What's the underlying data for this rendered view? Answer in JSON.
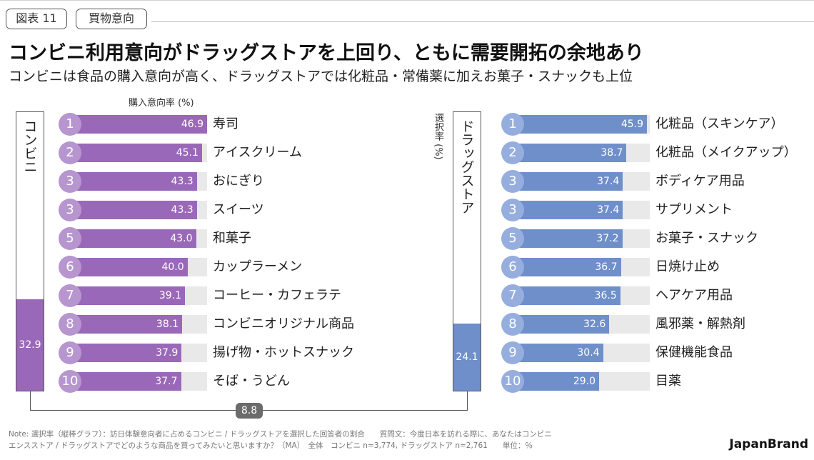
{
  "header": {
    "tag1": "図表 11",
    "tag2": "買物意向",
    "title": "コンビニ利用意向がドラッグストアを上回り、ともに需要開拓の余地あり",
    "subtitle": "コンビニは食品の購入意向が高く、ドラッグストアでは化粧品・常備薬に加えお菓子・スナックも上位"
  },
  "labels": {
    "left_axis": "購入意向率 (%)",
    "right_axis": "選択率 (%)"
  },
  "colors": {
    "conbini": "#9a68b8",
    "conbini_circle": "#b796cf",
    "drugstore": "#6f8fcb",
    "drugstore_circle": "#96aede"
  },
  "chart_data": [
    {
      "type": "bar",
      "group": "コンビニ",
      "total": "32.9",
      "total_value": 32.9,
      "xlim": [
        0,
        50
      ],
      "ranks": [
        "1",
        "2",
        "3",
        "3",
        "5",
        "6",
        "7",
        "8",
        "9",
        "10"
      ],
      "categories": [
        "寿司",
        "アイスクリーム",
        "おにぎり",
        "スイーツ",
        "和菓子",
        "カップラーメン",
        "コーヒー・カフェラテ",
        "コンビニオリジナル商品",
        "揚げ物・ホットスナック",
        "そば・うどん"
      ],
      "values": [
        46.9,
        45.1,
        43.3,
        43.3,
        43.0,
        40.0,
        39.1,
        38.1,
        37.9,
        37.7
      ],
      "value_labels": [
        "46.9",
        "45.1",
        "43.3",
        "43.3",
        "43.0",
        "40.0",
        "39.1",
        "38.1",
        "37.9",
        "37.7"
      ]
    },
    {
      "type": "bar",
      "group": "ドラッグストア",
      "total": "24.1",
      "total_value": 24.1,
      "xlim": [
        0,
        50
      ],
      "ranks": [
        "1",
        "2",
        "3",
        "3",
        "5",
        "6",
        "7",
        "8",
        "9",
        "10"
      ],
      "categories": [
        "化粧品（スキンケア）",
        "化粧品（メイクアップ）",
        "ボディケア用品",
        "サプリメント",
        "お菓子・スナック",
        "日焼け止め",
        "ヘアケア用品",
        "風邪薬・解熱剤",
        "保健機能食品",
        "目薬"
      ],
      "values": [
        45.9,
        38.7,
        37.4,
        37.4,
        37.2,
        36.7,
        36.5,
        32.6,
        30.4,
        29.0
      ],
      "value_labels": [
        "45.9",
        "38.7",
        "37.4",
        "37.4",
        "37.2",
        "36.7",
        "36.5",
        "32.6",
        "30.4",
        "29.0"
      ]
    }
  ],
  "difference": "8.8",
  "notes": {
    "line1": "Note: 選択率（縦棒グラフ）：訪日体験意向者に占めるコンビニ / ドラッグストアを選択した回答者の割合　　質問文：今度日本を訪れる際に、あなたはコンビニ",
    "line2": "エンスストア / ドラッグストアでどのような商品を買ってみたいと思いますか？（MA）　全体　コンビニ n=3,774, ドラッグストア n=2,761　　単位：％"
  },
  "brand": "JapanBrand"
}
